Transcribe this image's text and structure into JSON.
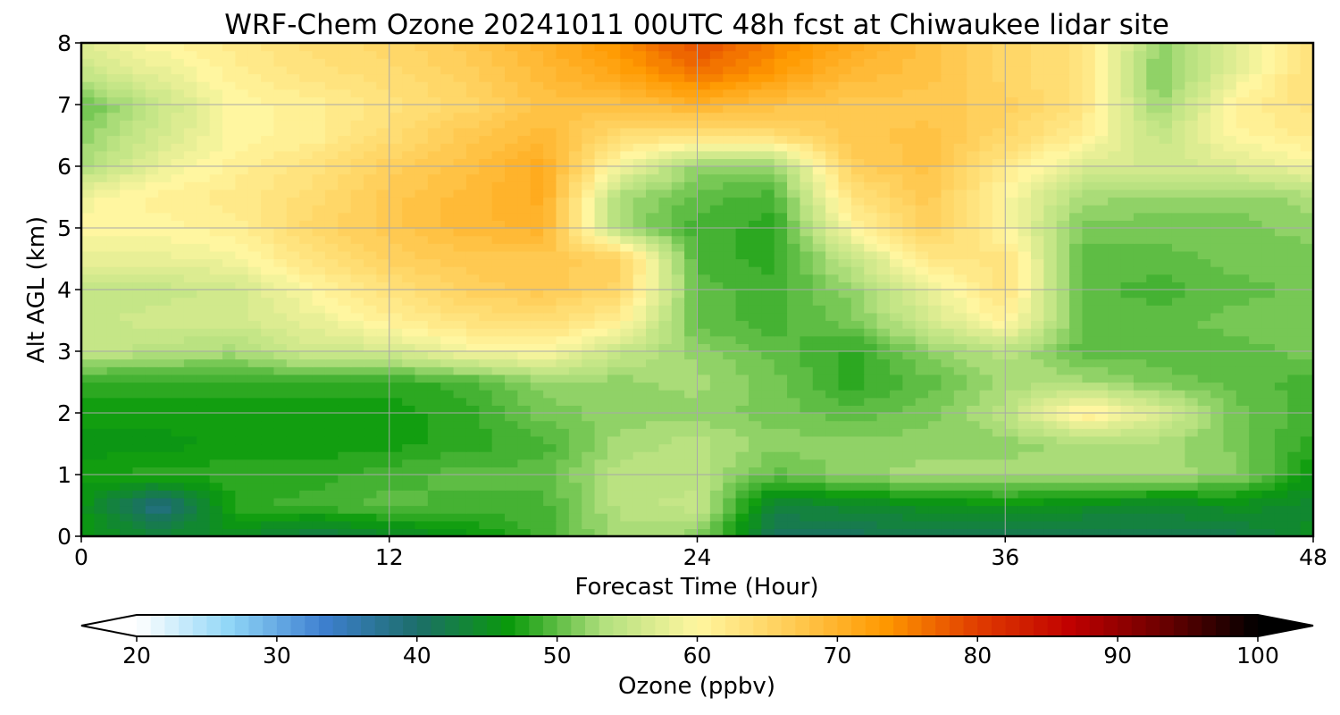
{
  "chart_data": {
    "type": "heatmap",
    "title": "WRF-Chem Ozone  20241011 00UTC 48h fcst at Chiwaukee lidar site",
    "xlabel": "Forecast Time (Hour)",
    "ylabel": "Alt AGL (km)",
    "xlim": [
      0,
      48
    ],
    "ylim": [
      0,
      8
    ],
    "xticks": [
      0,
      12,
      24,
      36,
      48
    ],
    "yticks": [
      0,
      1,
      2,
      3,
      4,
      5,
      6,
      7,
      8
    ],
    "grid": true,
    "x": [
      0,
      3,
      6,
      9,
      12,
      15,
      18,
      21,
      24,
      27,
      30,
      33,
      36,
      39,
      42,
      45,
      48
    ],
    "y": [
      0,
      0.5,
      1,
      1.5,
      2,
      2.5,
      3,
      3.5,
      4,
      4.5,
      5,
      5.5,
      6,
      6.5,
      7,
      7.5,
      8
    ],
    "z": [
      [
        46,
        44,
        45,
        42,
        44,
        46,
        49,
        53,
        52,
        41,
        41,
        42,
        41,
        41,
        42,
        42,
        45
      ],
      [
        46,
        38,
        48,
        49,
        50,
        49,
        49,
        54,
        55,
        43,
        44,
        45,
        46,
        45,
        44,
        45,
        44
      ],
      [
        47,
        48,
        48,
        48,
        49,
        50,
        50,
        54,
        54,
        50,
        52,
        53,
        53,
        53,
        53,
        52,
        46
      ],
      [
        46,
        46,
        47,
        47,
        47,
        48,
        49,
        53,
        54,
        52,
        52,
        52,
        52,
        53,
        53,
        51,
        48
      ],
      [
        47,
        47,
        47,
        47,
        47,
        48,
        51,
        52,
        52,
        51,
        50,
        51,
        54,
        62,
        57,
        51,
        49
      ],
      [
        48,
        48,
        48,
        48,
        48,
        49,
        52,
        52,
        53,
        51,
        48,
        50,
        53,
        53,
        51,
        50,
        49
      ],
      [
        55,
        54,
        53,
        56,
        56,
        59,
        60,
        55,
        52,
        50,
        48,
        52,
        54,
        50,
        50,
        50,
        51
      ],
      [
        55,
        56,
        56,
        58,
        61,
        63,
        64,
        61,
        50,
        49,
        51,
        56,
        61,
        50,
        50,
        51,
        51
      ],
      [
        55,
        55,
        56,
        60,
        63,
        66,
        67,
        65,
        50,
        49,
        52,
        58,
        63,
        50,
        49,
        50,
        51
      ],
      [
        58,
        58,
        59,
        63,
        66,
        67,
        67,
        66,
        49,
        48,
        55,
        62,
        63,
        50,
        50,
        51,
        51
      ],
      [
        60,
        60,
        61,
        65,
        67,
        69,
        70,
        53,
        49,
        48,
        60,
        66,
        60,
        51,
        51,
        51,
        52
      ],
      [
        59,
        61,
        62,
        64,
        67,
        69,
        71,
        53,
        50,
        49,
        63,
        67,
        60,
        53,
        52,
        52,
        53
      ],
      [
        53,
        58,
        61,
        63,
        66,
        68,
        71,
        59,
        52,
        52,
        66,
        68,
        62,
        57,
        56,
        57,
        59
      ],
      [
        52,
        56,
        60,
        61,
        64,
        67,
        69,
        64,
        63,
        64,
        67,
        68,
        65,
        61,
        55,
        60,
        62
      ],
      [
        50,
        55,
        60,
        61,
        63,
        65,
        68,
        68,
        70,
        68,
        67,
        67,
        66,
        63,
        52,
        61,
        63
      ],
      [
        55,
        58,
        61,
        63,
        64,
        66,
        69,
        72,
        76,
        73,
        69,
        68,
        65,
        63,
        51,
        58,
        64
      ],
      [
        57,
        60,
        62,
        64,
        65,
        67,
        70,
        74,
        79,
        75,
        71,
        68,
        65,
        63,
        52,
        57,
        63
      ]
    ],
    "colorbar": {
      "label": "Ozone  (ppbv)",
      "ticks": [
        20,
        30,
        40,
        50,
        60,
        70,
        80,
        90,
        100
      ],
      "range": [
        20,
        100
      ],
      "extend": "both",
      "colors": [
        "#ffffff",
        "#8fd6f7",
        "#3e7fd0",
        "#1c6e6a",
        "#0a9a0a",
        "#b2e07e",
        "#fff6a0",
        "#ffcc55",
        "#ff9900",
        "#e03c00",
        "#c00000",
        "#6a0000",
        "#000000"
      ]
    }
  }
}
